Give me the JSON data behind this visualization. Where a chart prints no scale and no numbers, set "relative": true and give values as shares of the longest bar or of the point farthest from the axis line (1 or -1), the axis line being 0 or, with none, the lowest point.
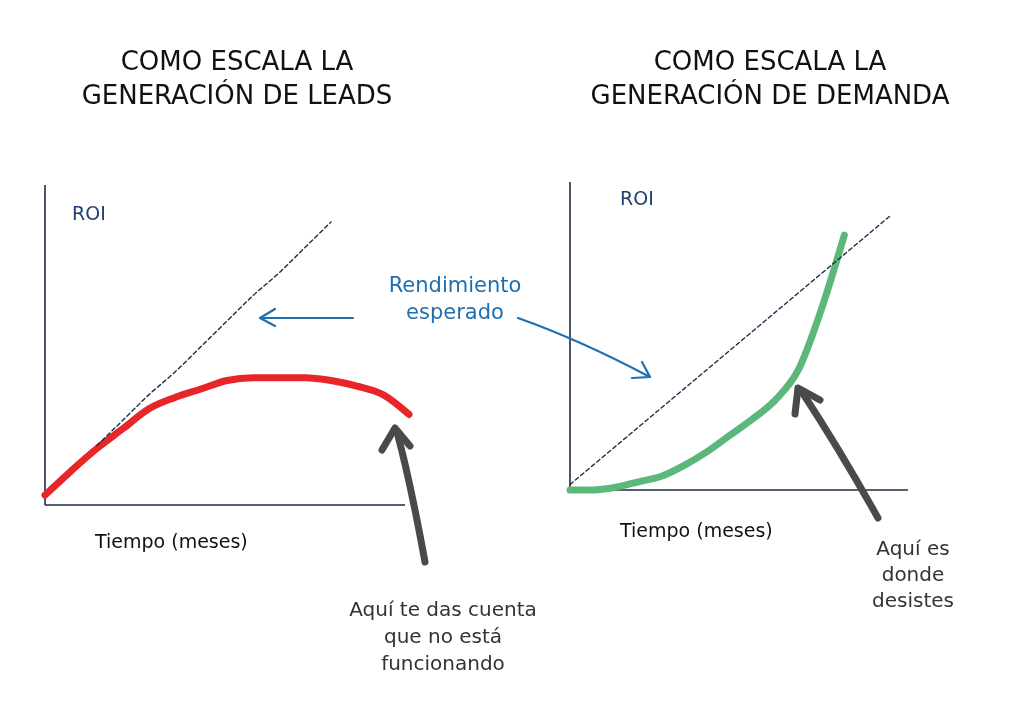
{
  "chart_data": [
    {
      "type": "line",
      "relative": true,
      "title": "COMO ESCALA LA\nGENERACIÓN DE LEADS",
      "xlabel": "Tiempo (meses)",
      "ylabel": "ROI",
      "marker": "none",
      "categories": [
        null,
        null,
        null,
        null,
        null,
        null,
        null,
        null,
        null,
        null,
        null,
        null,
        null,
        null,
        null
      ],
      "series": [
        {
          "color": "#1f2a44",
          "line_style": "dashed",
          "values": [
            null,
            null,
            0.21,
            0.3,
            0.39,
            0.47,
            0.56,
            0.65,
            0.74,
            0.82,
            0.91,
            1.0,
            null,
            null,
            null
          ]
        },
        {
          "color": "#e8262a",
          "line_style": "solid",
          "values": [
            0.035,
            0.12,
            0.2,
            0.27,
            0.34,
            0.38,
            0.41,
            0.44,
            0.45,
            0.45,
            0.45,
            0.44,
            0.42,
            0.39,
            0.32
          ]
        }
      ],
      "annotations": [
        "Rendimiento\nesperado",
        "Aquí te das cuenta\nque no está\nfuncionando"
      ]
    },
    {
      "type": "line",
      "relative": true,
      "title": "COMO ESCALA LA\nGENERACIÓN DE DEMANDA",
      "xlabel": "Tiempo (meses)",
      "ylabel": "ROI",
      "marker": "none",
      "categories": [
        null,
        null,
        null,
        null,
        null,
        null,
        null,
        null,
        null,
        null,
        null,
        null,
        null,
        null,
        null
      ],
      "series": [
        {
          "color": "#1f2a44",
          "line_style": "dashed",
          "values": [
            0.02,
            0.09,
            0.16,
            0.23,
            0.3,
            0.37,
            0.44,
            0.51,
            0.58,
            0.65,
            0.72,
            0.79,
            0.86,
            0.93,
            1.0
          ]
        },
        {
          "color": "#5cb87a",
          "line_style": "solid",
          "values": [
            0,
            0,
            0.01,
            0.03,
            0.05,
            0.09,
            0.14,
            0.2,
            0.26,
            0.33,
            0.44,
            0.66,
            0.93,
            null,
            null
          ]
        }
      ],
      "annotations": [
        "Aquí es\ndonde\ndesistes"
      ]
    }
  ]
}
